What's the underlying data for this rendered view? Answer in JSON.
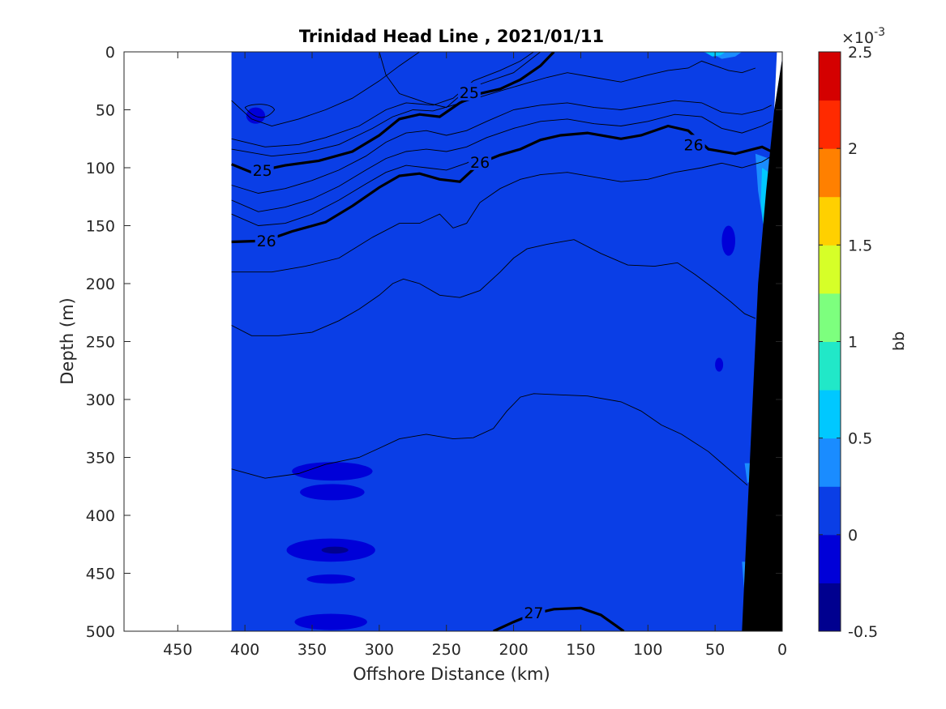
{
  "chart_data": {
    "type": "filled-contour",
    "title": "Trinidad Head Line , 2021/01/11",
    "xlabel": "Offshore Distance (km)",
    "ylabel": "Depth (m)",
    "xlim": [
      490,
      0
    ],
    "ylim": [
      500,
      0
    ],
    "x_reversed": true,
    "y_reversed": true,
    "xticks": [
      450,
      400,
      350,
      300,
      250,
      200,
      150,
      100,
      50,
      0
    ],
    "yticks": [
      0,
      50,
      100,
      150,
      200,
      250,
      300,
      350,
      400,
      450,
      500
    ],
    "data_extent_x": [
      0,
      410
    ],
    "colorbar": {
      "label": "bb",
      "exponent_label": "×10",
      "exponent_value": "-3",
      "levels": [
        -0.5,
        -0.25,
        0,
        0.25,
        0.5,
        0.75,
        1,
        1.25,
        1.5,
        1.75,
        2,
        2.25,
        2.5
      ],
      "colors": [
        "#00008f",
        "#0000d8",
        "#0a3ee6",
        "#1a8cff",
        "#00c8ff",
        "#21e8c8",
        "#7dff7e",
        "#d6ff28",
        "#ffd000",
        "#ff8000",
        "#ff2a00",
        "#d40000"
      ],
      "ticks": [
        -0.5,
        0,
        0.5,
        1,
        1.5,
        2,
        2.5
      ],
      "tick_labels": [
        "-0.5",
        "0",
        "0.5",
        "1",
        "1.5",
        "2",
        "2.5"
      ]
    },
    "background_level_color": "#0a3ee6",
    "contour_labels": [
      {
        "text": "25",
        "x": 387,
        "y": 102
      },
      {
        "text": "25",
        "x": 233,
        "y": 35
      },
      {
        "text": "26",
        "x": 384,
        "y": 163
      },
      {
        "text": "26",
        "x": 225,
        "y": 95
      },
      {
        "text": "26",
        "x": 66,
        "y": 80
      },
      {
        "text": "27",
        "x": 185,
        "y": 484
      }
    ],
    "isopycnals": [
      {
        "level": "25",
        "bold": true,
        "points": [
          [
            410,
            97
          ],
          [
            395,
            104
          ],
          [
            370,
            98
          ],
          [
            345,
            94
          ],
          [
            320,
            86
          ],
          [
            300,
            72
          ],
          [
            285,
            58
          ],
          [
            270,
            54
          ],
          [
            255,
            56
          ],
          [
            240,
            44
          ],
          [
            225,
            36
          ],
          [
            210,
            32
          ],
          [
            195,
            24
          ],
          [
            180,
            12
          ],
          [
            170,
            0
          ]
        ]
      },
      {
        "level": "26",
        "bold": true,
        "points": [
          [
            410,
            164
          ],
          [
            385,
            163
          ],
          [
            365,
            155
          ],
          [
            340,
            147
          ],
          [
            320,
            133
          ],
          [
            300,
            117
          ],
          [
            285,
            107
          ],
          [
            270,
            105
          ],
          [
            255,
            110
          ],
          [
            240,
            112
          ],
          [
            225,
            96
          ],
          [
            210,
            89
          ],
          [
            195,
            84
          ],
          [
            180,
            76
          ],
          [
            165,
            72
          ],
          [
            145,
            70
          ],
          [
            120,
            75
          ],
          [
            105,
            72
          ],
          [
            85,
            64
          ],
          [
            70,
            68
          ],
          [
            55,
            84
          ],
          [
            35,
            88
          ],
          [
            15,
            82
          ],
          [
            8,
            86
          ]
        ]
      },
      {
        "level": "27",
        "bold": true,
        "points": [
          [
            215,
            500
          ],
          [
            200,
            492
          ],
          [
            185,
            485
          ],
          [
            170,
            481
          ],
          [
            150,
            480
          ],
          [
            135,
            486
          ],
          [
            118,
            500
          ]
        ]
      }
    ],
    "thin_isolines": [
      [
        [
          410,
          42
        ],
        [
          395,
          58
        ],
        [
          380,
          64
        ],
        [
          360,
          58
        ],
        [
          340,
          50
        ],
        [
          320,
          40
        ],
        [
          300,
          25
        ],
        [
          285,
          12
        ],
        [
          270,
          0
        ]
      ],
      [
        [
          300,
          0
        ],
        [
          295,
          20
        ],
        [
          285,
          36
        ],
        [
          265,
          44
        ],
        [
          250,
          48
        ],
        [
          240,
          38
        ],
        [
          225,
          28
        ],
        [
          200,
          18
        ],
        [
          180,
          0
        ]
      ],
      [
        [
          410,
          75
        ],
        [
          385,
          82
        ],
        [
          360,
          80
        ],
        [
          340,
          74
        ],
        [
          315,
          64
        ],
        [
          295,
          50
        ],
        [
          280,
          44
        ],
        [
          260,
          46
        ],
        [
          245,
          40
        ],
        [
          230,
          25
        ],
        [
          210,
          16
        ],
        [
          195,
          8
        ],
        [
          185,
          0
        ]
      ],
      [
        [
          410,
          84
        ],
        [
          380,
          90
        ],
        [
          355,
          87
        ],
        [
          330,
          80
        ],
        [
          305,
          66
        ],
        [
          290,
          56
        ],
        [
          275,
          50
        ],
        [
          260,
          51
        ],
        [
          245,
          46
        ],
        [
          228,
          40
        ],
        [
          205,
          32
        ],
        [
          190,
          27
        ],
        [
          175,
          22
        ],
        [
          160,
          18
        ],
        [
          140,
          22
        ],
        [
          120,
          26
        ],
        [
          100,
          20
        ],
        [
          85,
          16
        ],
        [
          70,
          14
        ],
        [
          60,
          8
        ],
        [
          50,
          12
        ],
        [
          40,
          16
        ],
        [
          30,
          18
        ],
        [
          20,
          14
        ]
      ],
      [
        [
          410,
          115
        ],
        [
          390,
          122
        ],
        [
          370,
          118
        ],
        [
          350,
          111
        ],
        [
          330,
          102
        ],
        [
          310,
          90
        ],
        [
          295,
          78
        ],
        [
          280,
          70
        ],
        [
          265,
          68
        ],
        [
          250,
          72
        ],
        [
          235,
          68
        ],
        [
          220,
          60
        ],
        [
          200,
          50
        ],
        [
          180,
          46
        ],
        [
          160,
          44
        ],
        [
          140,
          48
        ],
        [
          120,
          50
        ],
        [
          100,
          46
        ],
        [
          80,
          42
        ],
        [
          60,
          44
        ],
        [
          45,
          52
        ],
        [
          30,
          54
        ],
        [
          15,
          50
        ],
        [
          8,
          46
        ]
      ],
      [
        [
          410,
          128
        ],
        [
          390,
          138
        ],
        [
          370,
          134
        ],
        [
          350,
          127
        ],
        [
          330,
          116
        ],
        [
          310,
          102
        ],
        [
          295,
          92
        ],
        [
          280,
          86
        ],
        [
          265,
          84
        ],
        [
          250,
          86
        ],
        [
          235,
          82
        ],
        [
          220,
          74
        ],
        [
          200,
          66
        ],
        [
          180,
          60
        ],
        [
          160,
          58
        ],
        [
          140,
          62
        ],
        [
          120,
          64
        ],
        [
          100,
          60
        ],
        [
          80,
          54
        ],
        [
          60,
          56
        ],
        [
          45,
          66
        ],
        [
          30,
          70
        ],
        [
          15,
          64
        ],
        [
          8,
          60
        ]
      ],
      [
        [
          410,
          140
        ],
        [
          390,
          150
        ],
        [
          370,
          148
        ],
        [
          350,
          140
        ],
        [
          330,
          128
        ],
        [
          310,
          114
        ],
        [
          295,
          104
        ],
        [
          280,
          98
        ],
        [
          265,
          100
        ],
        [
          250,
          102
        ],
        [
          235,
          96
        ],
        [
          220,
          88
        ]
      ],
      [
        [
          410,
          190
        ],
        [
          380,
          190
        ],
        [
          355,
          185
        ],
        [
          330,
          178
        ],
        [
          305,
          160
        ],
        [
          285,
          148
        ],
        [
          270,
          148
        ],
        [
          255,
          140
        ],
        [
          245,
          152
        ],
        [
          235,
          148
        ],
        [
          225,
          130
        ],
        [
          210,
          118
        ],
        [
          195,
          110
        ],
        [
          180,
          106
        ],
        [
          160,
          104
        ],
        [
          140,
          108
        ],
        [
          120,
          112
        ],
        [
          100,
          110
        ],
        [
          80,
          104
        ],
        [
          60,
          100
        ],
        [
          45,
          96
        ],
        [
          30,
          100
        ],
        [
          15,
          95
        ],
        [
          8,
          90
        ]
      ],
      [
        [
          410,
          236
        ],
        [
          395,
          245
        ],
        [
          375,
          245
        ],
        [
          350,
          242
        ],
        [
          330,
          232
        ],
        [
          315,
          222
        ],
        [
          300,
          210
        ],
        [
          290,
          200
        ],
        [
          282,
          196
        ],
        [
          270,
          200
        ],
        [
          255,
          210
        ],
        [
          240,
          212
        ],
        [
          225,
          206
        ],
        [
          210,
          190
        ],
        [
          200,
          178
        ],
        [
          190,
          170
        ],
        [
          175,
          166
        ],
        [
          155,
          162
        ],
        [
          135,
          174
        ],
        [
          115,
          184
        ],
        [
          95,
          185
        ],
        [
          78,
          182
        ],
        [
          65,
          192
        ],
        [
          50,
          205
        ],
        [
          38,
          216
        ],
        [
          28,
          226
        ],
        [
          20,
          230
        ]
      ],
      [
        [
          410,
          360
        ],
        [
          385,
          368
        ],
        [
          360,
          364
        ],
        [
          340,
          356
        ],
        [
          315,
          350
        ],
        [
          300,
          342
        ],
        [
          285,
          334
        ],
        [
          265,
          330
        ],
        [
          245,
          334
        ],
        [
          230,
          333
        ],
        [
          215,
          325
        ],
        [
          205,
          310
        ],
        [
          195,
          298
        ],
        [
          185,
          295
        ],
        [
          165,
          296
        ],
        [
          145,
          297
        ],
        [
          120,
          302
        ],
        [
          105,
          310
        ],
        [
          90,
          322
        ],
        [
          75,
          330
        ],
        [
          55,
          345
        ],
        [
          40,
          360
        ],
        [
          32,
          368
        ],
        [
          26,
          374
        ]
      ]
    ]
  }
}
